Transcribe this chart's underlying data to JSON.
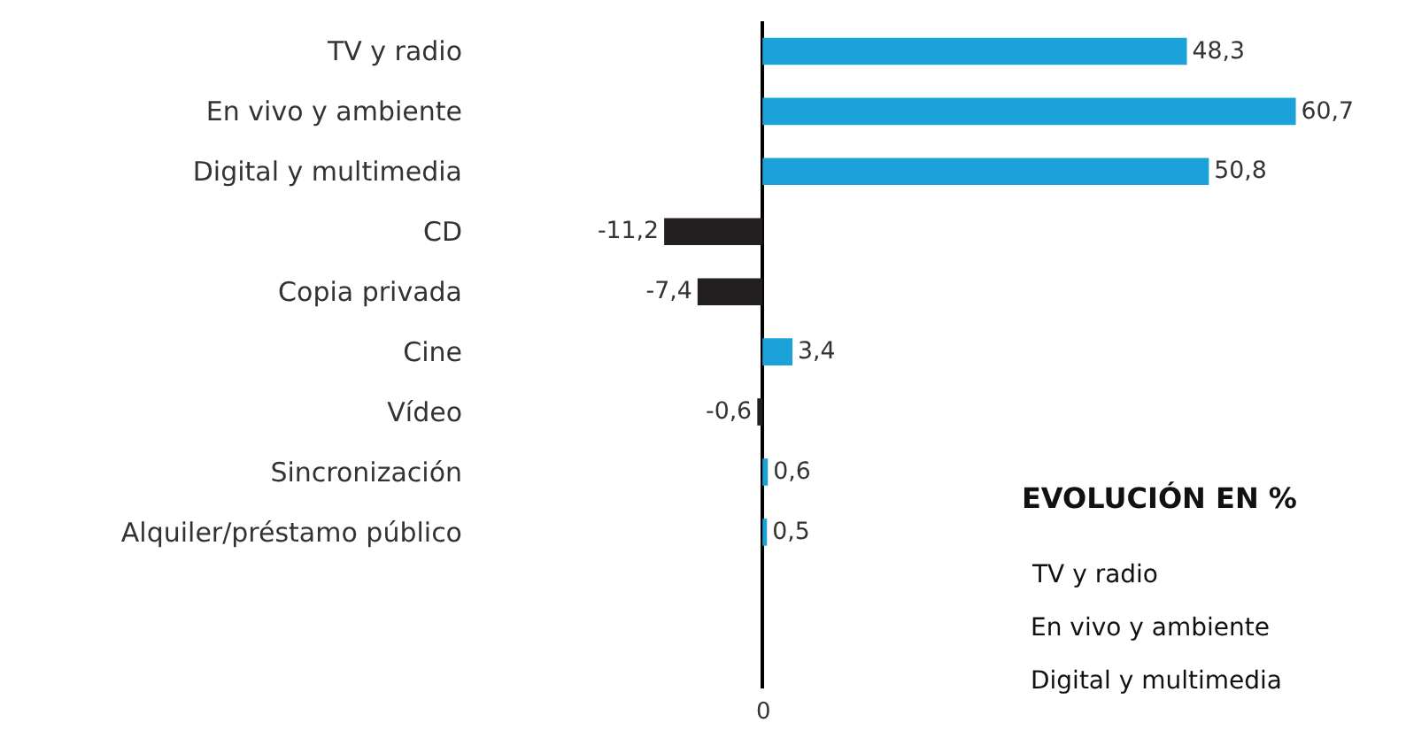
{
  "chart_data": {
    "type": "bar",
    "orientation": "horizontal",
    "categories": [
      "TV y radio",
      "En vivo y ambiente",
      "Digital y multimedia",
      "CD",
      "Copia privada",
      "Cine",
      "Vídeo",
      "Sincronización",
      "Alquiler/préstamo público"
    ],
    "values": [
      48.3,
      60.7,
      50.8,
      -11.2,
      -7.4,
      3.4,
      -0.6,
      0.6,
      0.5
    ],
    "colors": [
      "#1ba3d9",
      "#1ba3d9",
      "#1ba3d9",
      "#231f20",
      "#231f20",
      "#1ba3d9",
      "#231f20",
      "#1ba3d9",
      "#1ba3d9"
    ],
    "value_labels": [
      "48,3",
      "60,7",
      "50,8",
      "-11,2",
      "-7,4",
      "3,4",
      "-0,6",
      "0,6",
      "0,5"
    ],
    "legend": false,
    "annotations": [
      "EVOLUCIÓN EN %",
      "TV y radio",
      "En vivo y ambiente",
      "Digital y multimedia",
      {
        "text": "0",
        "x": 0
      }
    ]
  }
}
